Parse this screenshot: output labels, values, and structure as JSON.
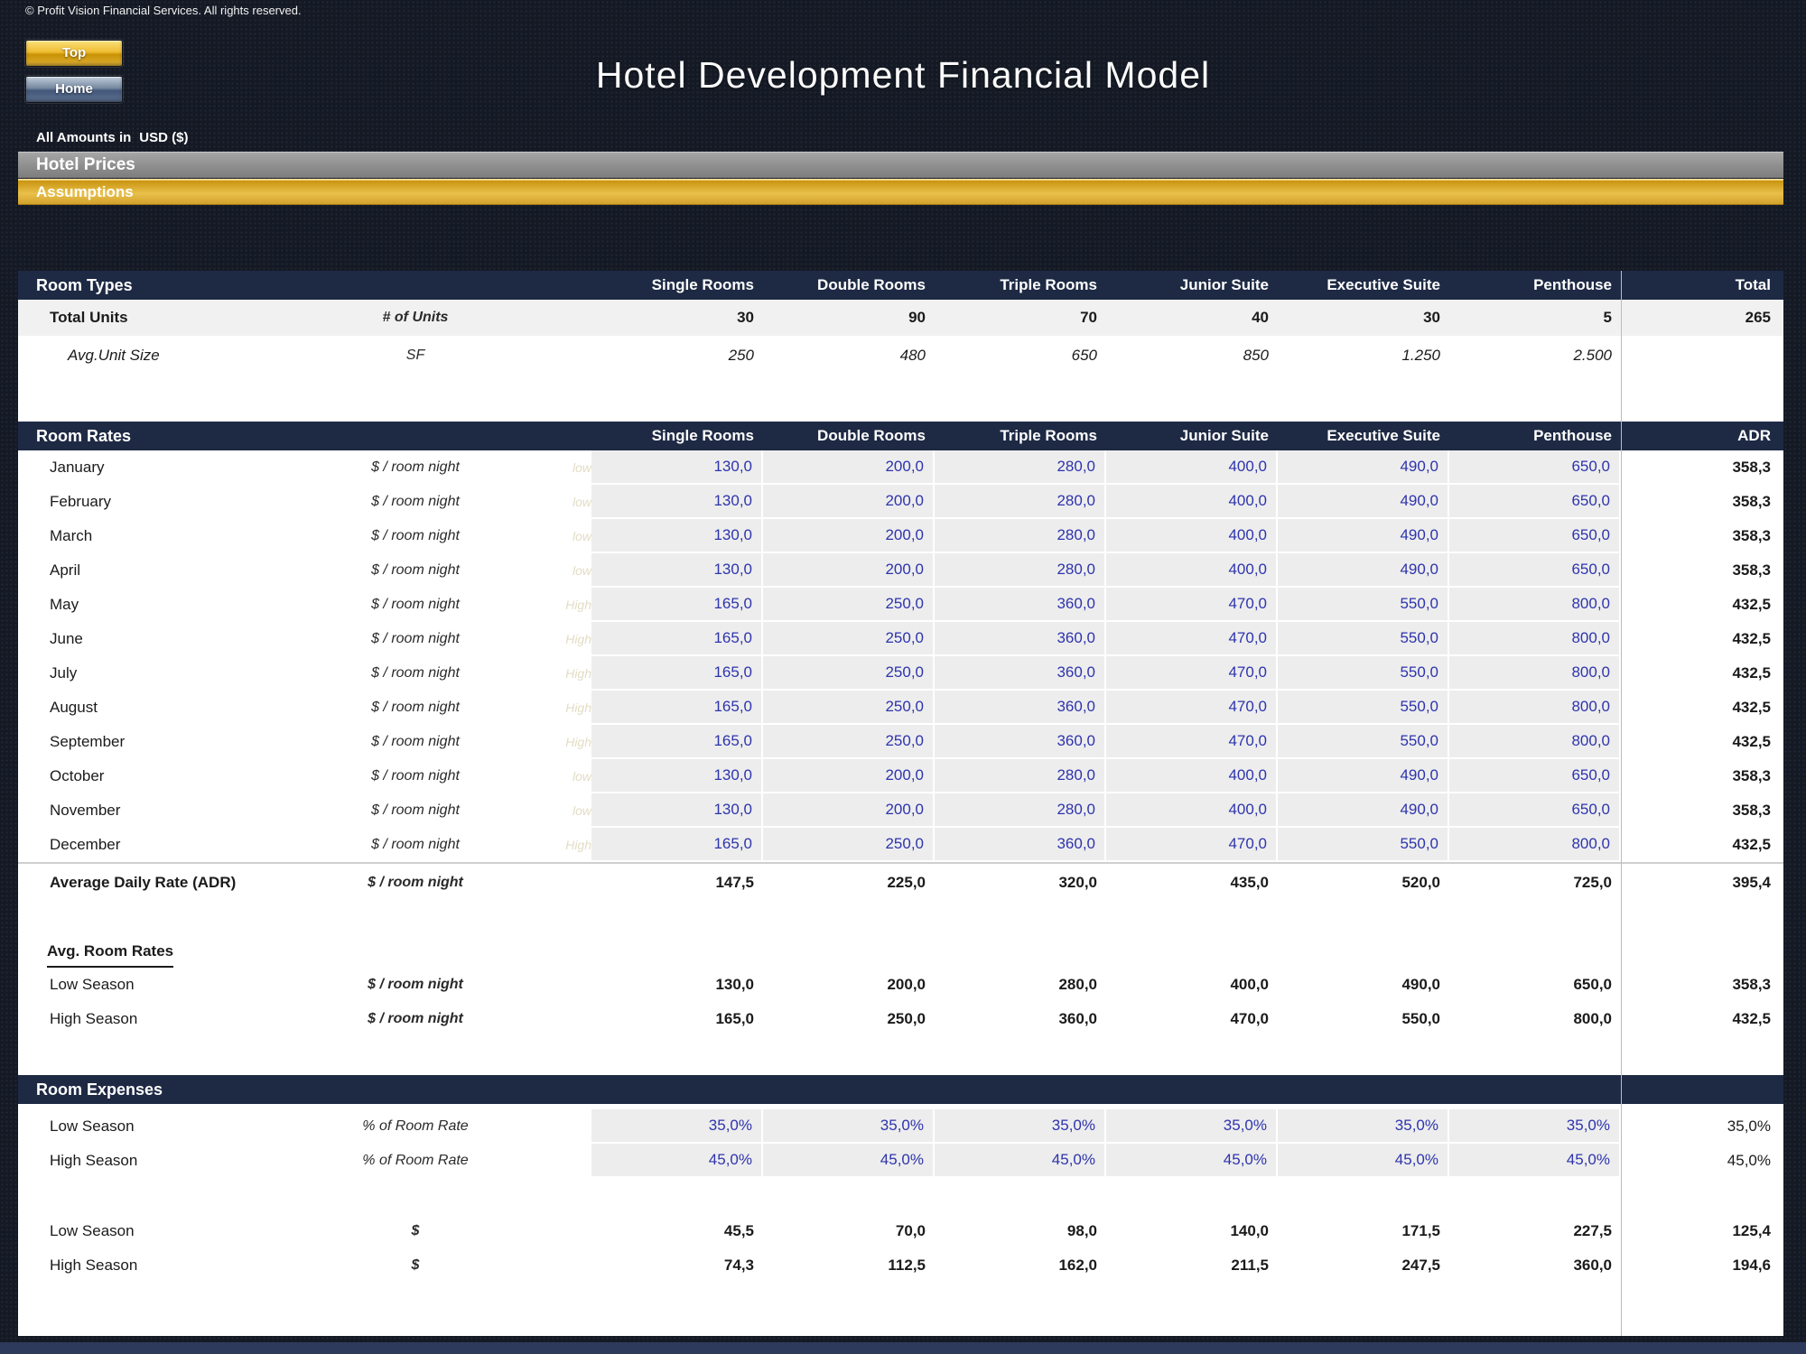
{
  "window": {
    "copyright": "© Profit Vision Financial Services. All rights reserved.",
    "title": "Hotel Development Financial Model",
    "top_button": "Top",
    "home_button": "Home",
    "amounts_label": "All Amounts in",
    "amounts_currency": "USD ($)"
  },
  "banners": {
    "section": "Hotel Prices",
    "subsection": "Assumptions"
  },
  "colors": {
    "background_navy": "#141924",
    "section_bar_navy": "#1e2a44",
    "banner_gray": "#8e8e8e",
    "banner_gold": "#e9c04b",
    "input_value_blue": "#2e34ad",
    "input_cell_gray": "#ededed",
    "top_button_gold": "#eebc32",
    "home_button_blue": "#74889f"
  },
  "columns": [
    "Single Rooms",
    "Double Rooms",
    "Triple Rooms",
    "Junior Suite",
    "Executive Suite",
    "Penthouse"
  ],
  "room_types": {
    "header": "Room Types",
    "total_label": "Total",
    "rows": [
      {
        "label": "Total Units",
        "unit": "# of Units",
        "values": [
          "30",
          "90",
          "70",
          "40",
          "30",
          "5"
        ],
        "total": "265"
      },
      {
        "label": "Avg.Unit Size",
        "unit": "SF",
        "values": [
          "250",
          "480",
          "650",
          "850",
          "1.250",
          "2.500"
        ],
        "total": ""
      }
    ]
  },
  "room_rates": {
    "header": "Room Rates",
    "total_label": "ADR",
    "months": [
      {
        "label": "January",
        "unit": "$ / room night",
        "season": "low",
        "values": [
          "130,0",
          "200,0",
          "280,0",
          "400,0",
          "490,0",
          "650,0"
        ],
        "total": "358,3"
      },
      {
        "label": "February",
        "unit": "$ / room night",
        "season": "low",
        "values": [
          "130,0",
          "200,0",
          "280,0",
          "400,0",
          "490,0",
          "650,0"
        ],
        "total": "358,3"
      },
      {
        "label": "March",
        "unit": "$ / room night",
        "season": "low",
        "values": [
          "130,0",
          "200,0",
          "280,0",
          "400,0",
          "490,0",
          "650,0"
        ],
        "total": "358,3"
      },
      {
        "label": "April",
        "unit": "$ / room night",
        "season": "low",
        "values": [
          "130,0",
          "200,0",
          "280,0",
          "400,0",
          "490,0",
          "650,0"
        ],
        "total": "358,3"
      },
      {
        "label": "May",
        "unit": "$ / room night",
        "season": "High",
        "values": [
          "165,0",
          "250,0",
          "360,0",
          "470,0",
          "550,0",
          "800,0"
        ],
        "total": "432,5"
      },
      {
        "label": "June",
        "unit": "$ / room night",
        "season": "High",
        "values": [
          "165,0",
          "250,0",
          "360,0",
          "470,0",
          "550,0",
          "800,0"
        ],
        "total": "432,5"
      },
      {
        "label": "July",
        "unit": "$ / room night",
        "season": "High",
        "values": [
          "165,0",
          "250,0",
          "360,0",
          "470,0",
          "550,0",
          "800,0"
        ],
        "total": "432,5"
      },
      {
        "label": "August",
        "unit": "$ / room night",
        "season": "High",
        "values": [
          "165,0",
          "250,0",
          "360,0",
          "470,0",
          "550,0",
          "800,0"
        ],
        "total": "432,5"
      },
      {
        "label": "September",
        "unit": "$ / room night",
        "season": "High",
        "values": [
          "165,0",
          "250,0",
          "360,0",
          "470,0",
          "550,0",
          "800,0"
        ],
        "total": "432,5"
      },
      {
        "label": "October",
        "unit": "$ / room night",
        "season": "low",
        "values": [
          "130,0",
          "200,0",
          "280,0",
          "400,0",
          "490,0",
          "650,0"
        ],
        "total": "358,3"
      },
      {
        "label": "November",
        "unit": "$ / room night",
        "season": "low",
        "values": [
          "130,0",
          "200,0",
          "280,0",
          "400,0",
          "490,0",
          "650,0"
        ],
        "total": "358,3"
      },
      {
        "label": "December",
        "unit": "$ / room night",
        "season": "High",
        "values": [
          "165,0",
          "250,0",
          "360,0",
          "470,0",
          "550,0",
          "800,0"
        ],
        "total": "432,5"
      }
    ],
    "adr_row": {
      "label": "Average Daily Rate (ADR)",
      "unit": "$ / room night",
      "values": [
        "147,5",
        "225,0",
        "320,0",
        "435,0",
        "520,0",
        "725,0"
      ],
      "total": "395,4"
    }
  },
  "avg_room_rates": {
    "heading": "Avg. Room Rates",
    "rows": [
      {
        "label": "Low Season",
        "unit": "$ / room night",
        "values": [
          "130,0",
          "200,0",
          "280,0",
          "400,0",
          "490,0",
          "650,0"
        ],
        "total": "358,3"
      },
      {
        "label": "High Season",
        "unit": "$ / room night",
        "values": [
          "165,0",
          "250,0",
          "360,0",
          "470,0",
          "550,0",
          "800,0"
        ],
        "total": "432,5"
      }
    ]
  },
  "room_expenses": {
    "header": "Room Expenses",
    "pct_rows": [
      {
        "label": "Low Season",
        "unit": "% of Room Rate",
        "values": [
          "35,0%",
          "35,0%",
          "35,0%",
          "35,0%",
          "35,0%",
          "35,0%"
        ],
        "total": "35,0%"
      },
      {
        "label": "High Season",
        "unit": "% of Room Rate",
        "values": [
          "45,0%",
          "45,0%",
          "45,0%",
          "45,0%",
          "45,0%",
          "45,0%"
        ],
        "total": "45,0%"
      }
    ],
    "usd_rows": [
      {
        "label": "Low Season",
        "unit": "$",
        "values": [
          "45,5",
          "70,0",
          "98,0",
          "140,0",
          "171,5",
          "227,5"
        ],
        "total": "125,4"
      },
      {
        "label": "High Season",
        "unit": "$",
        "values": [
          "74,3",
          "112,5",
          "162,0",
          "211,5",
          "247,5",
          "360,0"
        ],
        "total": "194,6"
      }
    ]
  }
}
